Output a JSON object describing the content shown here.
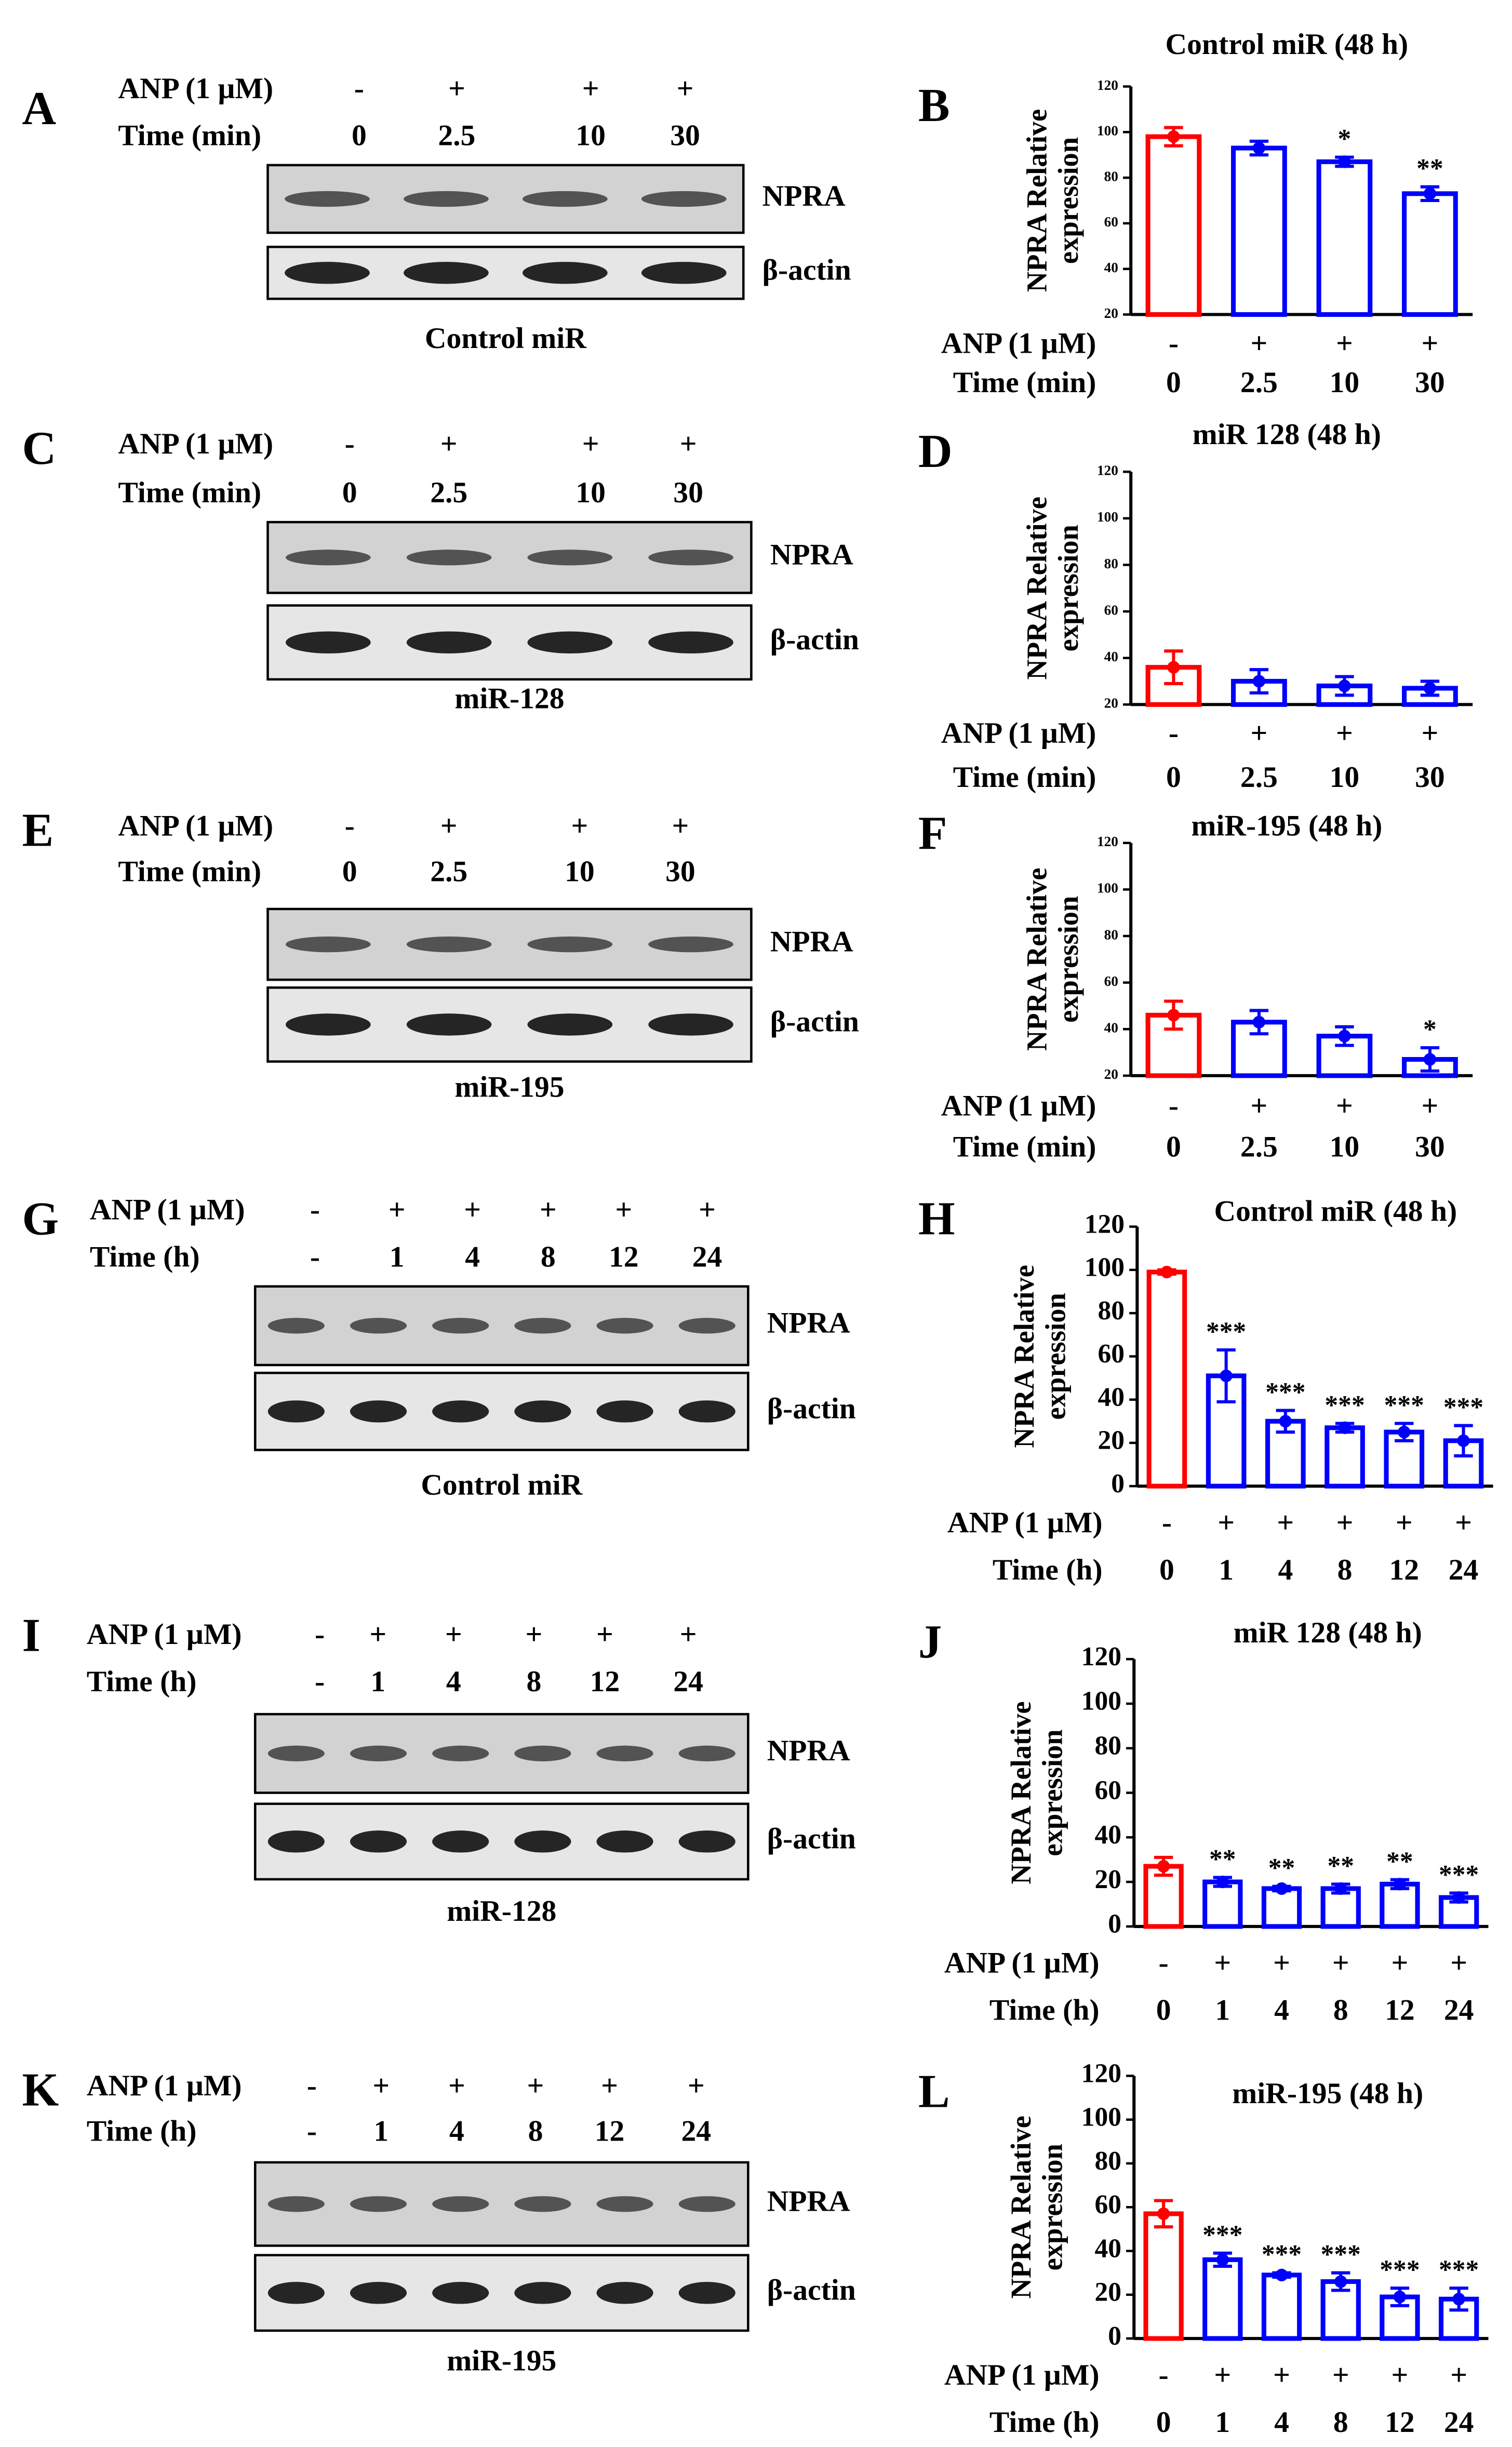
{
  "blots": [
    {
      "letter": "A",
      "treatment": "ANP (1 µM)",
      "signs": [
        "-",
        "+",
        "+",
        "+"
      ],
      "time_label": "Time (min)",
      "times": [
        "0",
        "2.5",
        "10",
        "30"
      ],
      "bands": [
        "NPRA",
        "β-actin"
      ],
      "caption": "Control miR"
    },
    {
      "letter": "C",
      "treatment": "ANP (1 µM)",
      "signs": [
        "-",
        "+",
        "+",
        "+"
      ],
      "time_label": "Time (min)",
      "times": [
        "0",
        "2.5",
        "10",
        "30"
      ],
      "bands": [
        "NPRA",
        "β-actin"
      ],
      "caption": "miR-128"
    },
    {
      "letter": "E",
      "treatment": "ANP (1 µM)",
      "signs": [
        "-",
        "+",
        "+",
        "+"
      ],
      "time_label": "Time (min)",
      "times": [
        "0",
        "2.5",
        "10",
        "30"
      ],
      "bands": [
        "NPRA",
        "β-actin"
      ],
      "caption": "miR-195"
    },
    {
      "letter": "G",
      "treatment": "ANP (1 µM)",
      "signs": [
        "-",
        "+",
        "+",
        "+",
        "+",
        "+"
      ],
      "time_label": "Time (h)",
      "times": [
        "-",
        "1",
        "4",
        "8",
        "12",
        "24"
      ],
      "bands": [
        "NPRA",
        "β-actin"
      ],
      "caption": "Control miR"
    },
    {
      "letter": "I",
      "treatment": "ANP (1 µM)",
      "signs": [
        "-",
        "+",
        "+",
        "+",
        "+",
        "+"
      ],
      "time_label": "Time (h)",
      "times": [
        "-",
        "1",
        "4",
        "8",
        "12",
        "24"
      ],
      "bands": [
        "NPRA",
        "β-actin"
      ],
      "caption": "miR-128"
    },
    {
      "letter": "K",
      "treatment": "ANP (1 µM)",
      "signs": [
        "-",
        "+",
        "+",
        "+",
        "+",
        "+"
      ],
      "time_label": "Time (h)",
      "times": [
        "-",
        "1",
        "4",
        "8",
        "12",
        "24"
      ],
      "bands": [
        "NPRA",
        "β-actin"
      ],
      "caption": "miR-195"
    }
  ],
  "chart_data": [
    {
      "type": "bar",
      "letter": "B",
      "title": "Control miR (48 h)",
      "y_label": [
        "NPRA Relative",
        "expression"
      ],
      "row_labels": [
        "ANP (1 µM)",
        "Time (min)"
      ],
      "signs": [
        "-",
        "+",
        "+",
        "+"
      ],
      "categories": [
        "0",
        "2.5",
        "10",
        "30"
      ],
      "values": [
        98,
        93,
        87,
        73
      ],
      "errors": [
        4,
        3,
        2,
        3
      ],
      "annotations": [
        null,
        null,
        "*",
        "**"
      ],
      "colors": [
        "#ff0000",
        "#0000ff",
        "#0000ff",
        "#0000ff"
      ],
      "ylim": [
        20,
        120
      ],
      "yticks": [
        20,
        40,
        60,
        80,
        100,
        120
      ]
    },
    {
      "type": "bar",
      "letter": "D",
      "title": "miR 128 (48 h)",
      "y_label": [
        "NPRA Relative",
        "expression"
      ],
      "row_labels": [
        "ANP (1 µM)",
        "Time (min)"
      ],
      "signs": [
        "-",
        "+",
        "+",
        "+"
      ],
      "categories": [
        "0",
        "2.5",
        "10",
        "30"
      ],
      "values": [
        36,
        30,
        28,
        27
      ],
      "errors": [
        7,
        5,
        4,
        3
      ],
      "annotations": [
        null,
        null,
        null,
        null
      ],
      "colors": [
        "#ff0000",
        "#0000ff",
        "#0000ff",
        "#0000ff"
      ],
      "ylim": [
        20,
        120
      ],
      "yticks": [
        20,
        40,
        60,
        80,
        100,
        120
      ]
    },
    {
      "type": "bar",
      "letter": "F",
      "title": "miR-195 (48 h)",
      "y_label": [
        "NPRA Relative",
        "expression"
      ],
      "row_labels": [
        "ANP (1 µM)",
        "Time (min)"
      ],
      "signs": [
        "-",
        "+",
        "+",
        "+"
      ],
      "categories": [
        "0",
        "2.5",
        "10",
        "30"
      ],
      "values": [
        46,
        43,
        37,
        27
      ],
      "errors": [
        6,
        5,
        4,
        5
      ],
      "annotations": [
        null,
        null,
        null,
        "*"
      ],
      "colors": [
        "#ff0000",
        "#0000ff",
        "#0000ff",
        "#0000ff"
      ],
      "ylim": [
        20,
        120
      ],
      "yticks": [
        20,
        40,
        60,
        80,
        100,
        120
      ]
    },
    {
      "type": "bar",
      "letter": "H",
      "title": "Control miR (48 h)",
      "y_label": [
        "NPRA Relative",
        "expression"
      ],
      "row_labels": [
        "ANP (1 µM)",
        "Time (h)"
      ],
      "signs": [
        "-",
        "+",
        "+",
        "+",
        "+",
        "+"
      ],
      "categories": [
        "0",
        "1",
        "4",
        "8",
        "12",
        "24"
      ],
      "values": [
        99,
        51,
        30,
        27,
        25,
        21
      ],
      "errors": [
        1,
        12,
        5,
        2,
        4,
        7
      ],
      "annotations": [
        null,
        "***",
        "***",
        "***",
        "***",
        "***"
      ],
      "colors": [
        "#ff0000",
        "#0000ff",
        "#0000ff",
        "#0000ff",
        "#0000ff",
        "#0000ff"
      ],
      "ylim": [
        0,
        120
      ],
      "yticks": [
        0,
        20,
        40,
        60,
        80,
        100,
        120
      ]
    },
    {
      "type": "bar",
      "letter": "J",
      "title": "miR 128 (48 h)",
      "y_label": [
        "NPRA Relative",
        "expression"
      ],
      "row_labels": [
        "ANP (1 µM)",
        "Time (h)"
      ],
      "signs": [
        "-",
        "+",
        "+",
        "+",
        "+",
        "+"
      ],
      "categories": [
        "0",
        "1",
        "4",
        "8",
        "12",
        "24"
      ],
      "values": [
        27,
        20,
        17,
        17,
        19,
        13
      ],
      "errors": [
        4,
        2,
        1,
        2,
        2,
        2
      ],
      "annotations": [
        null,
        "**",
        "**",
        "**",
        "**",
        "***"
      ],
      "colors": [
        "#ff0000",
        "#0000ff",
        "#0000ff",
        "#0000ff",
        "#0000ff",
        "#0000ff"
      ],
      "ylim": [
        0,
        120
      ],
      "yticks": [
        0,
        20,
        40,
        60,
        80,
        100,
        120
      ]
    },
    {
      "type": "bar",
      "letter": "L",
      "title": "miR-195 (48 h)",
      "y_label": [
        "NPRA Relative",
        "expression"
      ],
      "row_labels": [
        "ANP (1 µM)",
        "Time (h)"
      ],
      "signs": [
        "-",
        "+",
        "+",
        "+",
        "+",
        "+"
      ],
      "categories": [
        "0",
        "1",
        "4",
        "8",
        "12",
        "24"
      ],
      "values": [
        57,
        36,
        29,
        26,
        19,
        18
      ],
      "errors": [
        6,
        3,
        1,
        4,
        4,
        5
      ],
      "annotations": [
        null,
        "***",
        "***",
        "***",
        "***",
        "***"
      ],
      "colors": [
        "#ff0000",
        "#0000ff",
        "#0000ff",
        "#0000ff",
        "#0000ff",
        "#0000ff"
      ],
      "ylim": [
        0,
        120
      ],
      "yticks": [
        0,
        20,
        40,
        60,
        80,
        100,
        120
      ]
    }
  ]
}
